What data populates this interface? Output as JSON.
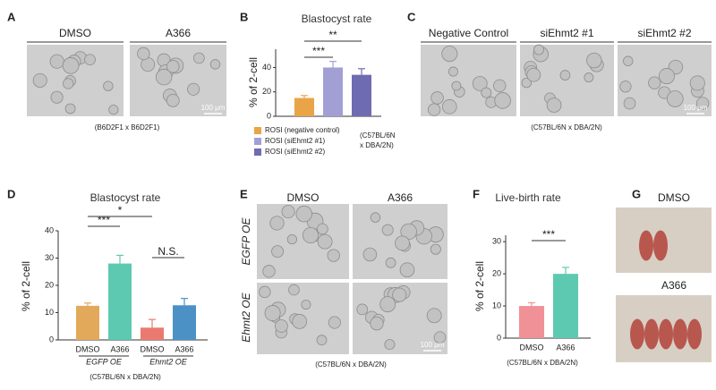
{
  "panels": {
    "A": {
      "label": "A",
      "images": [
        "DMSO",
        "A366"
      ],
      "scale_bar": "100 μm",
      "caption": "(B6D2F1 x B6D2F1)"
    },
    "C": {
      "label": "C",
      "images": [
        "Negative Control",
        "siEhmt2 #1",
        "siEhmt2 #2"
      ],
      "scale_bar": "100 μm",
      "caption": "(C57BL/6N x DBA/2N)"
    },
    "E": {
      "label": "E",
      "columns": [
        "DMSO",
        "A366"
      ],
      "rows": [
        "EGFP OE",
        "Ehmt2 OE"
      ],
      "scale_bar": "100 μm",
      "caption": "(C57BL/6N x DBA/2N)"
    },
    "G": {
      "label": "G",
      "images": [
        "DMSO",
        "A366"
      ]
    }
  },
  "chart_data": [
    {
      "type": "bar",
      "panel": "B",
      "title": "Blastocyst rate",
      "y_label": "% of 2-cell",
      "categories": [
        null,
        null,
        null
      ],
      "values": [
        15,
        40,
        34
      ],
      "errors": [
        2,
        5,
        5
      ],
      "colors": [
        "#e9a447",
        "#a29fd4",
        "#6f6bb0"
      ],
      "legend": [
        "ROSI (negative control)",
        "ROSI (siEhmt2 #1)",
        "ROSI (siEhmt2 #2)"
      ],
      "note": [
        "(C57BL/6N",
        "x DBA/2N)"
      ],
      "significance": [
        "***",
        "**"
      ],
      "ylim": [
        0,
        55
      ],
      "yticks": [
        0,
        20,
        40
      ]
    },
    {
      "type": "bar",
      "panel": "D",
      "title": "Blastocyst rate",
      "y_label": "% of 2-cell",
      "categories": [
        "DMSO",
        "A366",
        "DMSO",
        "A366"
      ],
      "groups": [
        "EGFP OE",
        "Ehmt2 OE"
      ],
      "values": [
        12.5,
        28,
        4.5,
        12.7
      ],
      "errors": [
        1,
        3,
        3,
        2.5
      ],
      "colors": [
        "#e3a95b",
        "#5ec9b1",
        "#ea7a70",
        "#4c91c6"
      ],
      "significance": [
        "***",
        "*",
        "N.S."
      ],
      "caption": "(C57BL/6N x DBA/2N)",
      "ylim": [
        0,
        40
      ],
      "yticks": [
        0,
        10,
        20,
        30,
        40
      ]
    },
    {
      "type": "bar",
      "panel": "F",
      "title": "Live-birth rate",
      "y_label": "% of 2-cell",
      "categories": [
        "DMSO",
        "A366"
      ],
      "values": [
        10,
        20
      ],
      "errors": [
        1,
        2
      ],
      "colors": [
        "#ef9196",
        "#5ec9b1"
      ],
      "significance": [
        "***"
      ],
      "caption": "(C57BL/6N x DBA/2N)",
      "ylim": [
        0,
        32
      ],
      "yticks": [
        0,
        10,
        20,
        30
      ]
    }
  ]
}
